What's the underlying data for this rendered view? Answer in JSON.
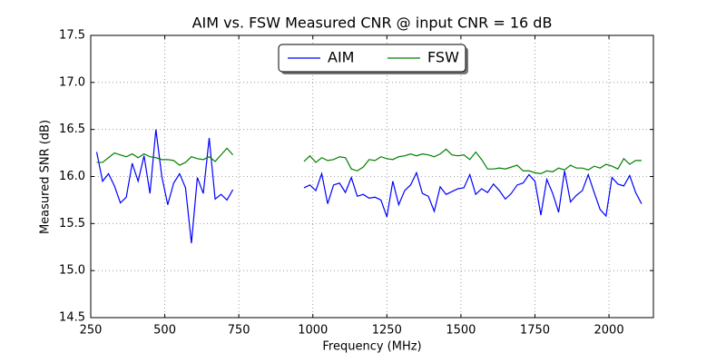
{
  "chart_data": {
    "type": "line",
    "title": "AIM vs. FSW Measured CNR @ input CNR = 16 dB",
    "x_label": "Frequency (MHz)",
    "y_label": "Measured SNR (dB)",
    "x": [
      270,
      290,
      310,
      330,
      350,
      370,
      390,
      410,
      430,
      450,
      470,
      490,
      510,
      530,
      550,
      570,
      590,
      610,
      630,
      650,
      670,
      690,
      710,
      730,
      850,
      970,
      990,
      1010,
      1030,
      1050,
      1070,
      1090,
      1110,
      1130,
      1150,
      1170,
      1190,
      1210,
      1230,
      1250,
      1270,
      1290,
      1310,
      1330,
      1350,
      1370,
      1390,
      1410,
      1430,
      1450,
      1470,
      1490,
      1510,
      1530,
      1550,
      1570,
      1590,
      1610,
      1630,
      1650,
      1670,
      1690,
      1710,
      1730,
      1750,
      1770,
      1790,
      1810,
      1830,
      1850,
      1870,
      1890,
      1910,
      1930,
      1950,
      1970,
      1990,
      2010,
      2030,
      2050,
      2070,
      2090,
      2110
    ],
    "series": [
      {
        "name": "AIM",
        "color": "#0000ff",
        "values": [
          16.26,
          15.95,
          16.03,
          15.9,
          15.72,
          15.78,
          16.14,
          15.95,
          16.22,
          15.82,
          16.5,
          16.0,
          15.7,
          15.93,
          16.03,
          15.88,
          15.29,
          15.99,
          15.82,
          16.41,
          15.76,
          15.81,
          15.75,
          15.86,
          null,
          15.88,
          15.91,
          15.85,
          16.03,
          15.71,
          15.91,
          15.93,
          15.83,
          15.99,
          15.79,
          15.81,
          15.77,
          15.78,
          15.75,
          15.57,
          15.95,
          15.7,
          15.85,
          15.91,
          16.04,
          15.82,
          15.79,
          15.63,
          15.89,
          15.81,
          15.84,
          15.87,
          15.88,
          16.02,
          15.81,
          15.87,
          15.83,
          15.92,
          15.85,
          15.76,
          15.82,
          15.91,
          15.93,
          16.02,
          15.95,
          15.59,
          15.97,
          15.82,
          15.62,
          16.06,
          15.73,
          15.8,
          15.85,
          16.02,
          15.83,
          15.65,
          15.58,
          15.99,
          15.92,
          15.9,
          16.01,
          15.83,
          15.71
        ]
      },
      {
        "name": "FSW",
        "color": "#008000",
        "values": [
          16.15,
          16.15,
          16.2,
          16.25,
          16.23,
          16.21,
          16.24,
          16.2,
          16.24,
          16.21,
          16.2,
          16.18,
          16.18,
          16.17,
          16.12,
          16.15,
          16.21,
          16.19,
          16.18,
          16.21,
          16.16,
          16.23,
          16.3,
          16.23,
          null,
          16.16,
          16.22,
          16.15,
          16.2,
          16.17,
          16.18,
          16.21,
          16.2,
          16.08,
          16.06,
          16.1,
          16.18,
          16.17,
          16.21,
          16.19,
          16.18,
          16.21,
          16.22,
          16.24,
          16.22,
          16.24,
          16.23,
          16.21,
          16.24,
          16.29,
          16.23,
          16.22,
          16.23,
          16.18,
          16.26,
          16.18,
          16.08,
          16.08,
          16.09,
          16.08,
          16.1,
          16.12,
          16.06,
          16.06,
          16.04,
          16.03,
          16.06,
          16.05,
          16.09,
          16.07,
          16.12,
          16.09,
          16.09,
          16.07,
          16.11,
          16.09,
          16.13,
          16.11,
          16.08,
          16.19,
          16.13,
          16.17,
          16.17
        ]
      }
    ],
    "xlim": [
      250,
      2150
    ],
    "xticks": [
      250,
      500,
      750,
      1000,
      1250,
      1500,
      1750,
      2000
    ],
    "ylim": [
      14.5,
      17.5
    ],
    "yticks": [
      14.5,
      {
        "value": 15.0,
        "label": "15.0"
      },
      15.5,
      {
        "value": 16.0,
        "label": "16.0"
      },
      16.5,
      {
        "value": 17.0,
        "label": "17.0"
      },
      17.5
    ],
    "grid": true,
    "legend": "upper center"
  }
}
